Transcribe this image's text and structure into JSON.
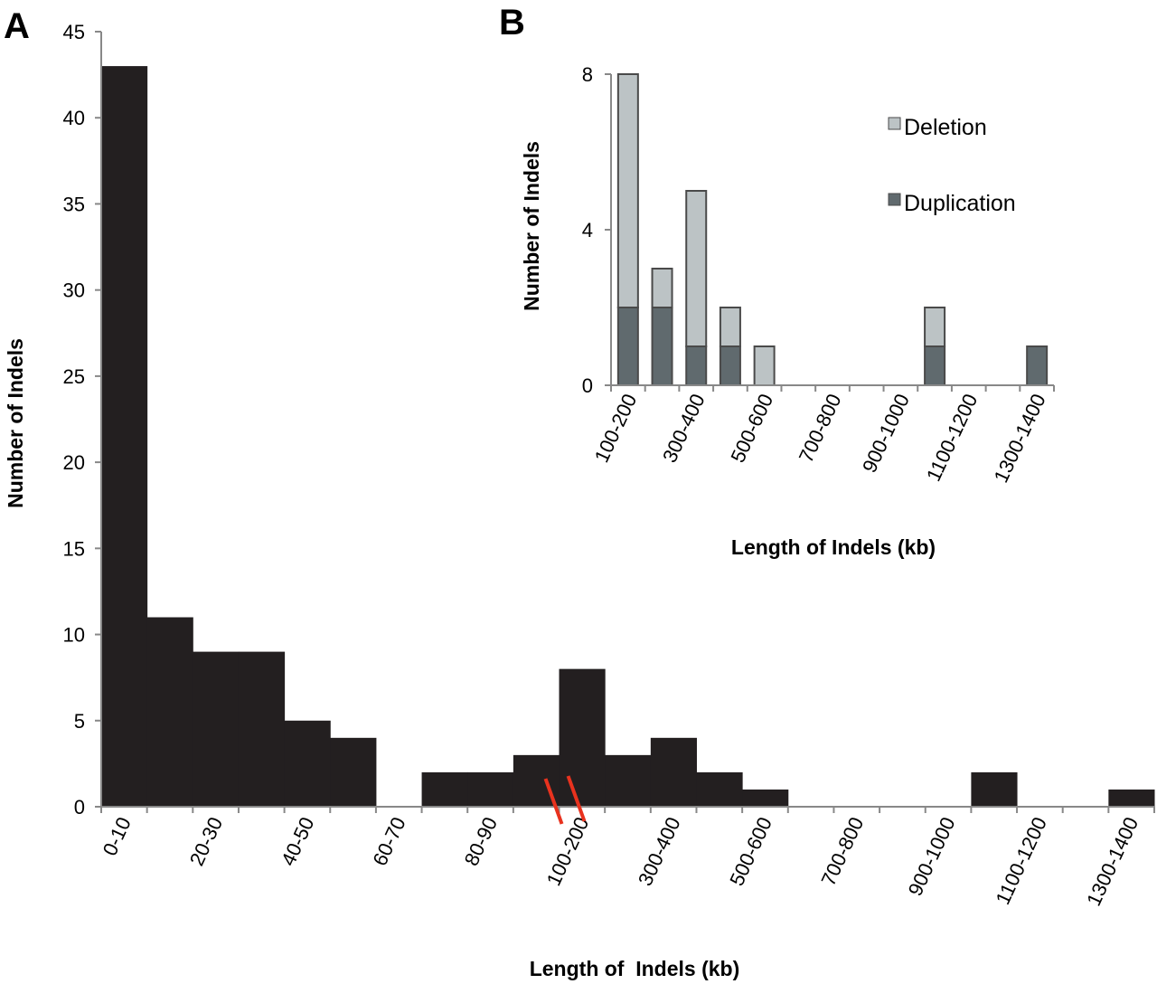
{
  "chart_data": [
    {
      "panel": "A",
      "type": "bar",
      "categories": [
        "0-10",
        "10-20",
        "20-30",
        "30-40",
        "40-50",
        "50-60",
        "60-70",
        "70-80",
        "80-90",
        "90-100",
        "100-200",
        "200-300",
        "300-400",
        "400-500",
        "500-600",
        "600-700",
        "700-800",
        "800-900",
        "900-1000",
        "1000-1100",
        "1100-1200",
        "1200-1300",
        "1300-1400"
      ],
      "tick_labels": [
        "0-10",
        "20-30",
        "40-50",
        "60-70",
        "80-90",
        "100-200",
        "300-400",
        "500-600",
        "700-800",
        "900-1000",
        "1100-1200",
        "1300-1400"
      ],
      "values": [
        43,
        11,
        9,
        9,
        5,
        4,
        0,
        2,
        2,
        3,
        8,
        3,
        4,
        2,
        1,
        0,
        0,
        0,
        0,
        2,
        0,
        0,
        1
      ],
      "xlabel": "Length of  Indels (kb)",
      "ylabel": "Number of Indels",
      "ylim": [
        0,
        45
      ],
      "yticks": [
        0,
        5,
        10,
        15,
        20,
        25,
        30,
        35,
        40,
        45
      ],
      "grid": false,
      "colors": {
        "bar": "#231f20",
        "axis": "#888888",
        "break_marks": "#e8321e"
      }
    },
    {
      "panel": "B",
      "type": "bar",
      "stacked": true,
      "categories": [
        "100-200",
        "200-300",
        "300-400",
        "400-500",
        "500-600",
        "600-700",
        "700-800",
        "800-900",
        "900-1000",
        "1000-1100",
        "1100-1200",
        "1200-1300",
        "1300-1400"
      ],
      "tick_labels": [
        "100-200",
        "300-400",
        "500-600",
        "700-800",
        "900-1000",
        "1100-1200",
        "1300-1400"
      ],
      "series": [
        {
          "name": "Duplication",
          "values": [
            2,
            2,
            1,
            1,
            0,
            0,
            0,
            0,
            0,
            1,
            0,
            0,
            1
          ],
          "color": "#606a6e"
        },
        {
          "name": "Deletion",
          "values": [
            6,
            1,
            4,
            1,
            1,
            0,
            0,
            0,
            0,
            1,
            0,
            0,
            0
          ],
          "color": "#bcc3c5"
        }
      ],
      "legend_order": [
        "Deletion",
        "Duplication"
      ],
      "legend_position": "top-right",
      "xlabel": "Length of Indels (kb)",
      "ylabel": "Number of Indels",
      "ylim": [
        0,
        8
      ],
      "yticks": [
        0,
        4,
        8
      ],
      "grid": false,
      "colors": {
        "axis": "#888888",
        "bar_edge": "#4a4a4a"
      }
    }
  ]
}
